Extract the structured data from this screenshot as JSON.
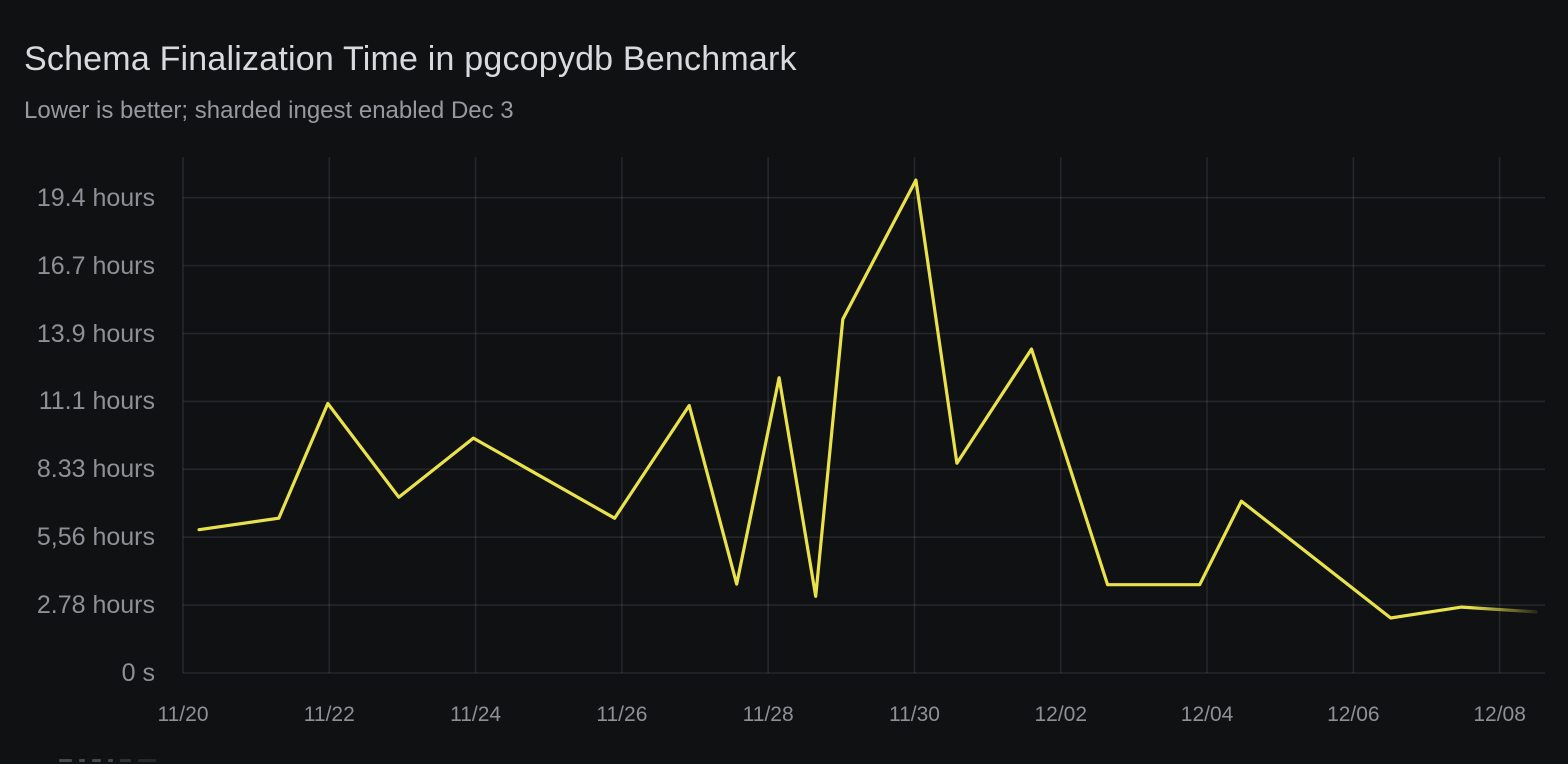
{
  "panel": {
    "title": "Schema Finalization Time in pgcopydb Benchmark",
    "subtitle": "Lower is better; sharded ingest enabled Dec 3"
  },
  "colors": {
    "background": "#101113",
    "grid": "rgba(220,227,255,0.10)",
    "line": "#EAE24B",
    "title_text": "#D9DADD",
    "subtitle_text": "#97999E",
    "axis_text": "#8E9096"
  },
  "chart_data": {
    "type": "line",
    "title": "Schema Finalization Time in pgcopydb Benchmark",
    "subtitle": "Lower is better; sharded ingest enabled Dec 3",
    "grid": true,
    "x_axis": {
      "unit": "date (MM/DD)",
      "tick_labels": [
        "11/20",
        "11/22",
        "11/24",
        "11/26",
        "11/28",
        "11/30",
        "12/02",
        "12/04",
        "12/06",
        "12/08"
      ],
      "tick_offsets_days": [
        0,
        2,
        4,
        6,
        8,
        10,
        12,
        14,
        16,
        18
      ],
      "range_days": [
        0,
        18.62
      ]
    },
    "y_axis": {
      "unit": "duration (seconds, labeled in hours)",
      "tick_labels": [
        "0 s",
        "2.78 hours",
        "5,56 hours",
        "8.33 hours",
        "11.1 hours",
        "13.9 hours",
        "16.7 hours",
        "19.4 hours"
      ],
      "tick_seconds": [
        0,
        10000,
        20000,
        30000,
        40000,
        50000,
        60000,
        70000
      ],
      "range_seconds": [
        0,
        76000
      ]
    },
    "legend": {
      "position": "bottom-left",
      "clipped_by_viewport": true
    },
    "series": [
      {
        "color": "#EAE24B",
        "line_width": 3.2,
        "tail_fades_out": true,
        "points": [
          {
            "offset_days": 0.22,
            "seconds": 21100
          },
          {
            "offset_days": 1.31,
            "seconds": 22800
          },
          {
            "offset_days": 1.98,
            "seconds": 39700
          },
          {
            "offset_days": 2.95,
            "seconds": 25900
          },
          {
            "offset_days": 3.97,
            "seconds": 34600
          },
          {
            "offset_days": 5.9,
            "seconds": 22800
          },
          {
            "offset_days": 6.92,
            "seconds": 39400
          },
          {
            "offset_days": 7.57,
            "seconds": 13100
          },
          {
            "offset_days": 8.15,
            "seconds": 43500
          },
          {
            "offset_days": 8.65,
            "seconds": 11300
          },
          {
            "offset_days": 9.02,
            "seconds": 52100
          },
          {
            "offset_days": 10.02,
            "seconds": 72600
          },
          {
            "offset_days": 10.58,
            "seconds": 30900
          },
          {
            "offset_days": 11.6,
            "seconds": 47700
          },
          {
            "offset_days": 12.64,
            "seconds": 13000
          },
          {
            "offset_days": 13.9,
            "seconds": 13000
          },
          {
            "offset_days": 14.47,
            "seconds": 25300
          },
          {
            "offset_days": 16.51,
            "seconds": 8100
          },
          {
            "offset_days": 17.48,
            "seconds": 9700
          },
          {
            "offset_days": 18.5,
            "seconds": 9000
          }
        ]
      }
    ]
  }
}
